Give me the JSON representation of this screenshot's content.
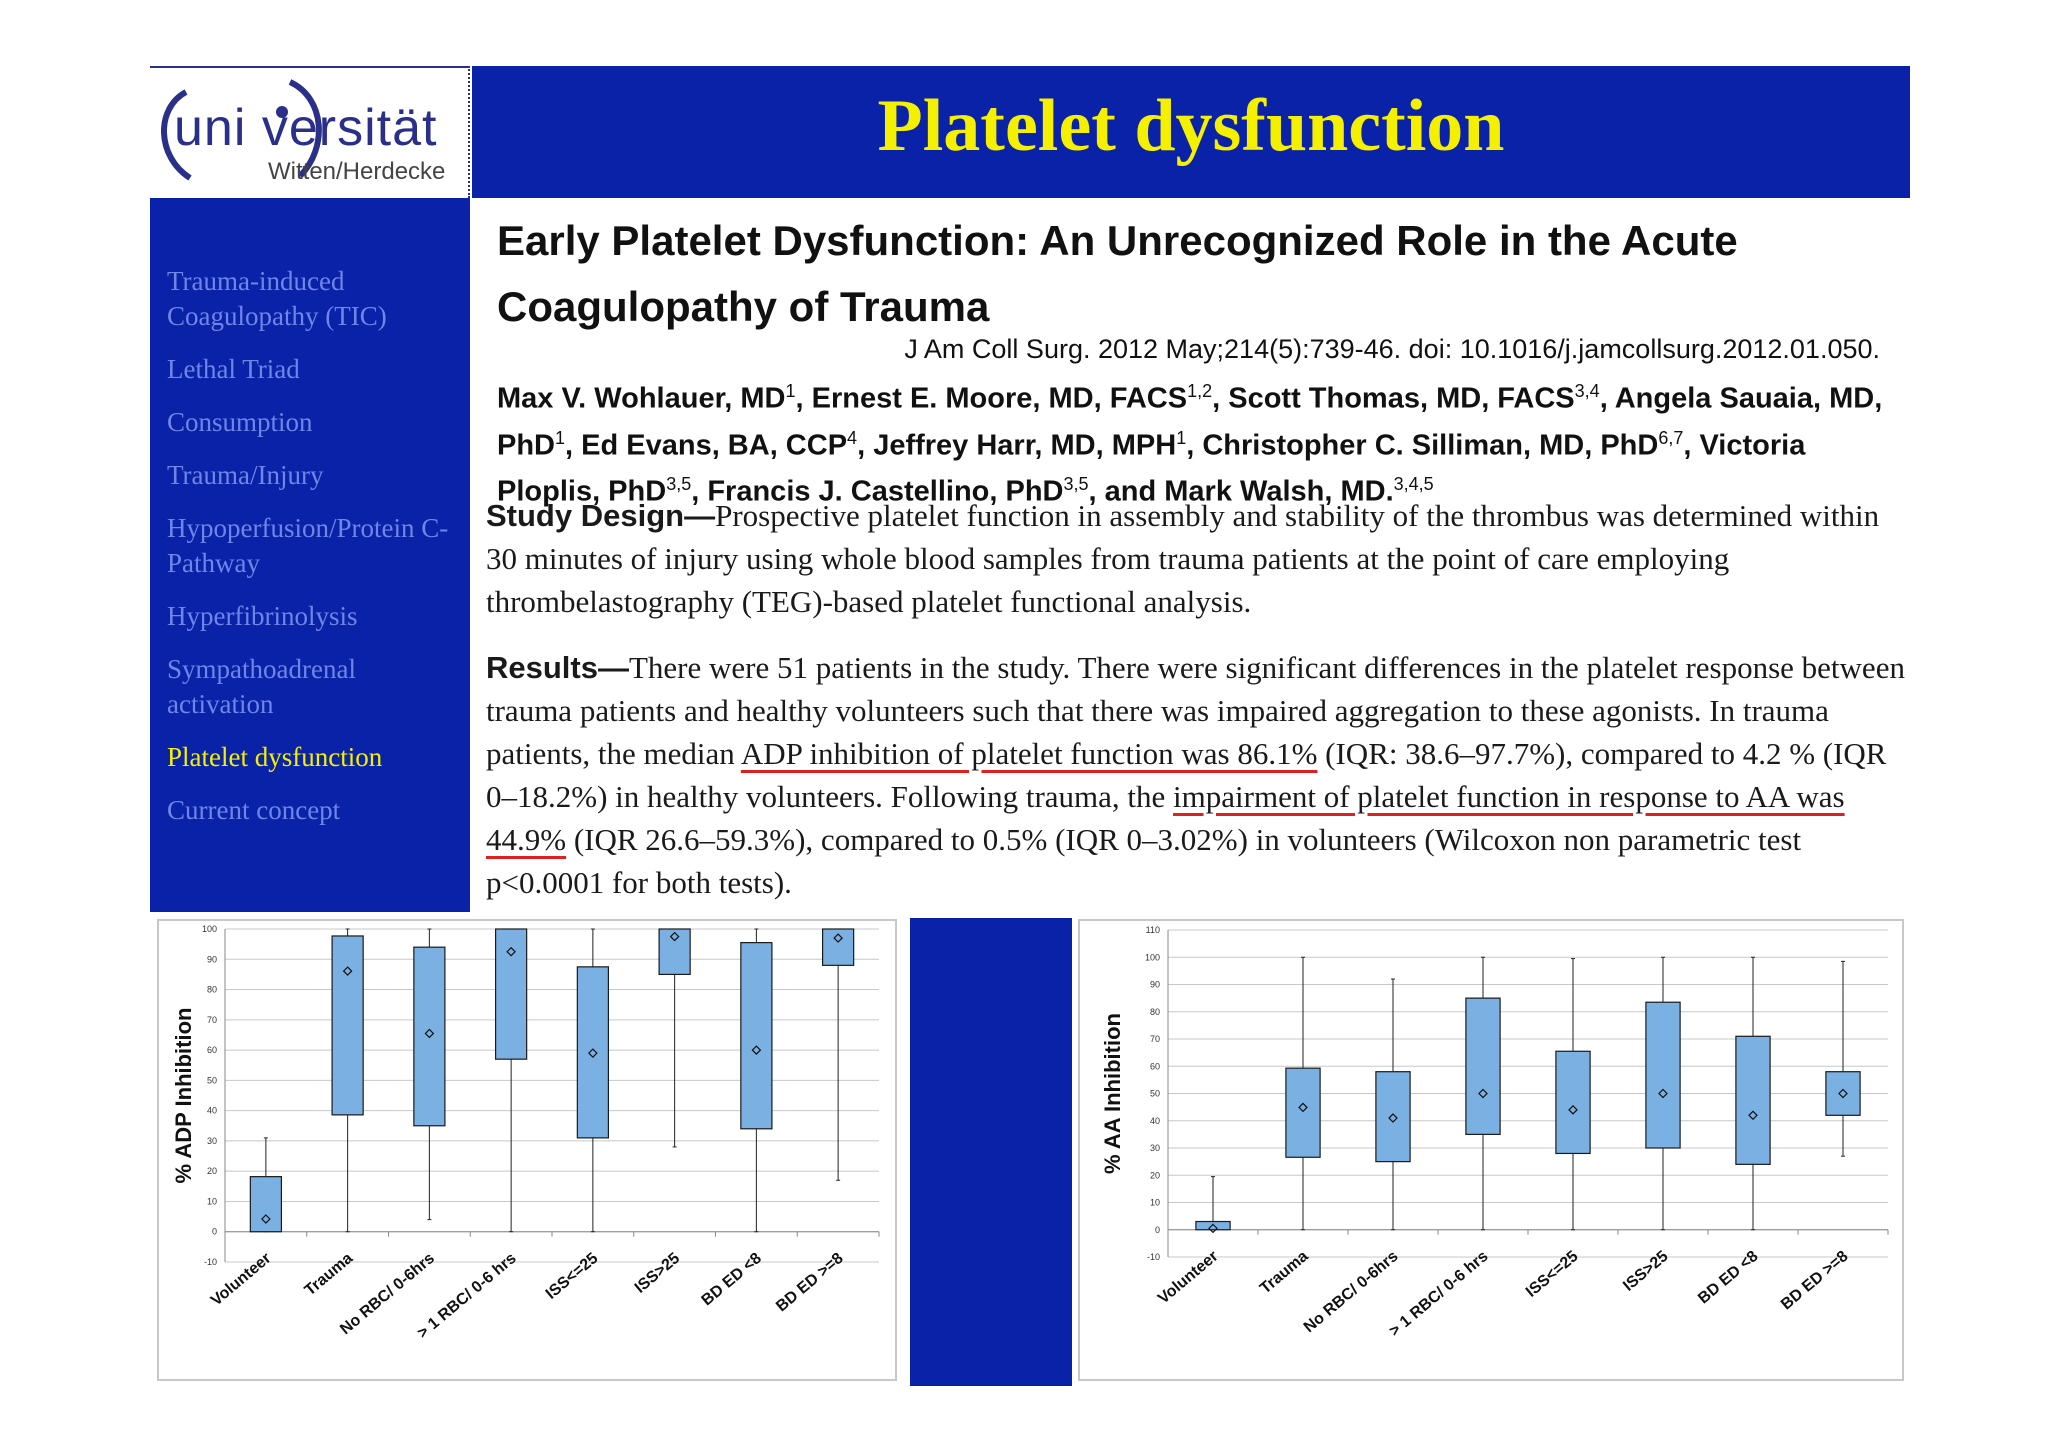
{
  "logo": {
    "main": "uni versität",
    "sub": "Witten/Herdecke"
  },
  "slide_title": "Platelet dysfunction",
  "sidebar": {
    "items": [
      {
        "label": "Trauma-induced Coagulopathy (TIC)",
        "active": false
      },
      {
        "label": "Lethal Triad",
        "active": false
      },
      {
        "label": "Consumption",
        "active": false
      },
      {
        "label": "Trauma/Injury",
        "active": false
      },
      {
        "label": "Hypoperfusion/Protein C-Pathway",
        "active": false
      },
      {
        "label": "Hyperfibrinolysis",
        "active": false
      },
      {
        "label": "Sympathoadrenal activation",
        "active": false
      },
      {
        "label": "Platelet dysfunction",
        "active": true
      },
      {
        "label": "Current concept",
        "active": false
      }
    ]
  },
  "article": {
    "title": "Early Platelet Dysfunction: An Unrecognized Role in the Acute Coagulopathy of Trauma",
    "citation": "J Am Coll Surg. 2012 May;214(5):739-46. doi: 10.1016/j.jamcollsurg.2012.01.050.",
    "authors": [
      {
        "name": "Max V. Wohlauer, MD",
        "sup": "1"
      },
      {
        "name": "Ernest E. Moore, MD, FACS",
        "sup": "1,2"
      },
      {
        "name": "Scott Thomas, MD, FACS",
        "sup": "3,4"
      },
      {
        "name": "Angela Sauaia, MD, PhD",
        "sup": "1"
      },
      {
        "name": "Ed Evans, BA, CCP",
        "sup": "4"
      },
      {
        "name": "Jeffrey Harr, MD, MPH",
        "sup": "1"
      },
      {
        "name": "Christopher C. Silliman, MD, PhD",
        "sup": "6,7"
      },
      {
        "name": "Victoria Ploplis, PhD",
        "sup": "3,5"
      },
      {
        "name": "Francis J. Castellino, PhD",
        "sup": "3,5"
      },
      {
        "name": "and Mark Walsh, MD.",
        "sup": "3,4,5"
      }
    ],
    "study_design_lead": "Study Design—",
    "study_design": "Prospective platelet function in assembly and stability of the thrombus was determined within 30 minutes of injury using whole blood samples from trauma patients at the point of care employing thrombelastography (TEG)-based platelet functional analysis.",
    "results_lead": "Results—",
    "results_1": "There were 51 patients in the study. There were significant differences in the platelet response between trauma patients and healthy volunteers such that there was impaired aggregation to these agonists. In trauma patients, the median ",
    "results_u1": "ADP inhibition of platelet function was 86.1%",
    "results_2": " (IQR: 38.6–97.7%), compared to 4.2 % (IQR 0–18.2%) in healthy volunteers. Following trauma, the ",
    "results_u2": "impairment of platelet function in response to AA was 44.9%",
    "results_3": " (IQR 26.6–59.3%), compared to 0.5% (IQR 0–3.02%) in volunteers (Wilcoxon non parametric test p<0.0001 for both tests)."
  },
  "colors": {
    "bar_blue": "#0a22a8",
    "title_yellow": "#f5f000",
    "nav_text": "#6f86e6",
    "box_fill": "#7bb0e3",
    "underline_red": "#e02020"
  },
  "chart_data": [
    {
      "type": "boxplot",
      "title": "",
      "ylabel": "% ADP Inhibition",
      "xlabel": "",
      "ylim": [
        -10,
        100
      ],
      "yticks": [
        -10,
        0,
        10,
        20,
        30,
        40,
        50,
        60,
        70,
        80,
        90,
        100
      ],
      "grid": true,
      "categories": [
        "Volunteer",
        "Trauma",
        "No RBC/ 0-6hrs",
        "> 1 RBC/ 0-6 hrs",
        "ISS<=25",
        "ISS>25",
        "BD ED <8",
        "BD ED >=8"
      ],
      "whisker_low": [
        0,
        0,
        4,
        0,
        0,
        28,
        0,
        17
      ],
      "q1": [
        0,
        38.6,
        35,
        57,
        31,
        85,
        34,
        88
      ],
      "median": [
        4.2,
        86.1,
        65.5,
        92.5,
        59,
        97.5,
        60,
        97
      ],
      "q3": [
        18.2,
        97.7,
        94,
        100,
        87.5,
        100,
        95.5,
        100
      ],
      "whisker_high": [
        31,
        100,
        100,
        100,
        100,
        100,
        100,
        100
      ]
    },
    {
      "type": "boxplot",
      "title": "",
      "ylabel": "% AA Inhibition",
      "xlabel": "",
      "ylim": [
        -10,
        110
      ],
      "yticks": [
        -10,
        0,
        10,
        20,
        30,
        40,
        50,
        60,
        70,
        80,
        90,
        100,
        110
      ],
      "grid": true,
      "categories": [
        "Volunteer",
        "Trauma",
        "No RBC/ 0-6hrs",
        "> 1 RBC/ 0-6 hrs",
        "ISS<=25",
        "ISS>25",
        "BD ED <8",
        "BD ED >=8"
      ],
      "whisker_low": [
        0,
        0,
        0,
        0,
        0,
        0,
        0,
        27
      ],
      "q1": [
        0,
        26.6,
        25,
        35,
        28,
        30,
        24,
        42
      ],
      "median": [
        0.5,
        44.9,
        41,
        50,
        44,
        50,
        42,
        50
      ],
      "q3": [
        3.02,
        59.3,
        58,
        85,
        65.5,
        83.5,
        71,
        58
      ],
      "whisker_high": [
        19.5,
        100,
        92,
        100,
        99.5,
        100,
        100,
        98.5
      ]
    }
  ]
}
